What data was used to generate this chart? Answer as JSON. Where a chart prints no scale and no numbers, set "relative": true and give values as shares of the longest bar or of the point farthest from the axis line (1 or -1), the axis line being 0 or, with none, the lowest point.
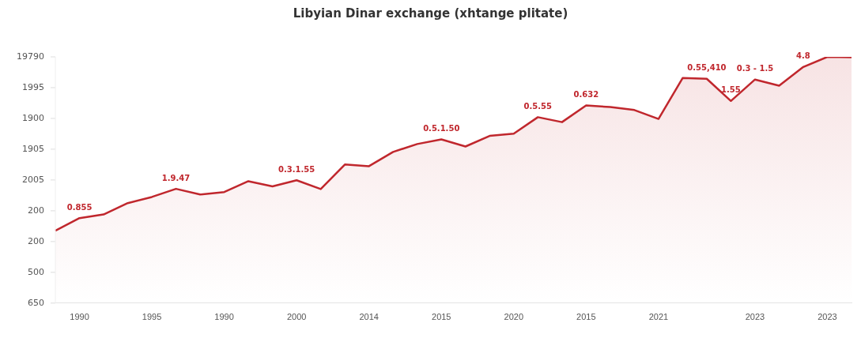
{
  "chart_data": {
    "type": "area",
    "title": "Libyian Dinar exchange (xhtange plitate)",
    "categories": [
      null,
      "1990",
      null,
      null,
      "1995",
      null,
      null,
      "1990",
      null,
      null,
      "2000",
      null,
      null,
      "2014",
      null,
      null,
      "2015",
      null,
      null,
      "2020",
      null,
      null,
      "2015",
      null,
      null,
      "2021",
      null,
      null,
      null,
      "2023",
      null,
      null,
      "2023",
      null
    ],
    "series": [
      {
        "color": "#c0272d",
        "values": [
          0.294,
          0.345,
          0.36,
          0.406,
          0.431,
          0.464,
          0.441,
          0.451,
          0.495,
          0.474,
          0.499,
          0.463,
          0.563,
          0.556,
          0.614,
          0.646,
          0.665,
          0.636,
          0.679,
          0.688,
          0.755,
          0.735,
          0.803,
          0.796,
          0.784,
          0.748,
          0.914,
          0.911,
          0.821,
          0.908,
          0.883,
          0.959,
          1,
          0.998
        ]
      }
    ],
    "relative": true,
    "annotations": [
      "19790",
      "1995",
      "1900",
      "1905",
      "2005",
      "200",
      "200",
      "500",
      "650",
      {
        "text": "0.855",
        "x": "1990",
        "y": 0.345
      },
      {
        "text": "1.9.47",
        "y": 0.464
      },
      {
        "text": "0.3.1.55",
        "x": "2000",
        "y": 0.499
      },
      {
        "text": "0.5.1.50",
        "x": "2015",
        "y": 0.665
      },
      {
        "text": "0.5.55",
        "y": 0.755
      },
      {
        "text": "0.632",
        "y": 0.803
      },
      {
        "text": "0.55,410",
        "y": 0.911
      },
      {
        "text": "1.55",
        "y": 0.821
      },
      {
        "text": "0.3 - 1.5",
        "x": "2023",
        "y": 0.908
      },
      {
        "text": "4.8",
        "y": 0.959
      }
    ],
    "grid": false,
    "marker": "none",
    "line_style": "solid"
  }
}
